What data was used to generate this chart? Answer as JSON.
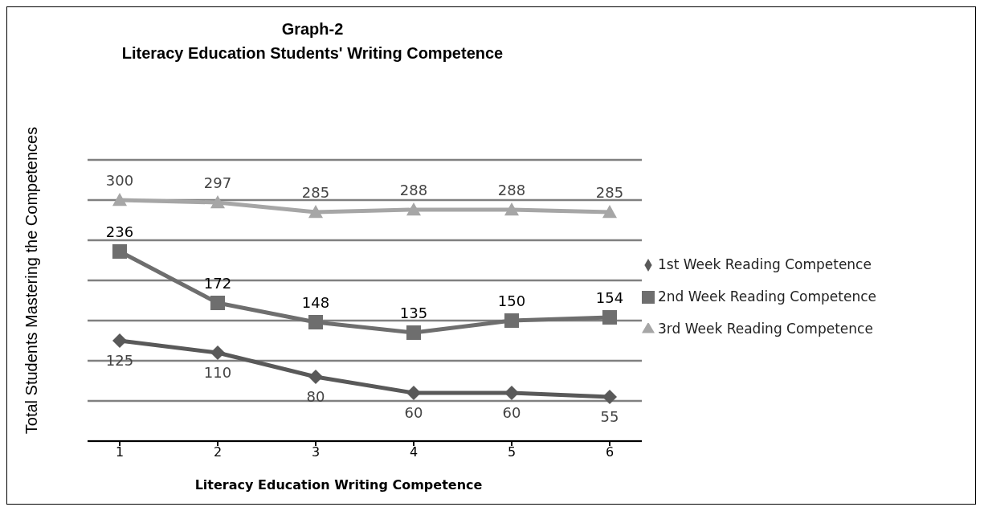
{
  "chart_data": {
    "type": "line",
    "title": "Graph-2",
    "subtitle": "Literacy Education Students' Writing Competence",
    "xlabel": "Literacy Education  Writing Competence",
    "ylabel": "Total Students Mastering the Competences",
    "categories": [
      "1",
      "2",
      "3",
      "4",
      "5",
      "6"
    ],
    "series": [
      {
        "name": "1st Week Reading Competence",
        "color": "#595959",
        "marker": "diamond",
        "values": [
          125,
          110,
          80,
          60,
          60,
          55
        ]
      },
      {
        "name": "2nd Week Reading Competence",
        "color": "#6e6e6e",
        "marker": "square",
        "values": [
          236,
          172,
          148,
          135,
          150,
          154
        ]
      },
      {
        "name": "3rd Week Reading Competence",
        "color": "#a6a6a6",
        "marker": "triangle",
        "values": [
          300,
          297,
          285,
          288,
          288,
          285
        ]
      }
    ],
    "ylim": [
      0,
      350
    ],
    "tick_labels": "x",
    "grid": "y",
    "legend": "right",
    "data_labels": true,
    "line_style": "solid"
  }
}
